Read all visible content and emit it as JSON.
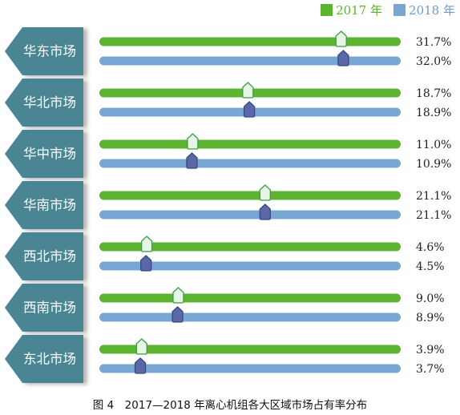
{
  "legend": {
    "items": [
      {
        "label": "2017 年",
        "color": "#5cb531",
        "text_color": "#5cb531"
      },
      {
        "label": "2018 年",
        "color": "#78a7d3",
        "text_color": "#6d9ccc"
      }
    ]
  },
  "caption": "图 4　2017—2018 年离心机组各大区域市场占有率分布",
  "colors": {
    "label_tab": "#4a8593",
    "marker_2017_fill": "#e7f5e4",
    "marker_2017_stroke": "#3d9a48",
    "marker_2018_fill": "#5a68a8",
    "marker_2018_stroke": "#3a4783"
  },
  "chart_data": {
    "type": "bar",
    "categories": [
      "华东市场",
      "华北市场",
      "华中市场",
      "华南市场",
      "西北市场",
      "西南市场",
      "东北市场"
    ],
    "series": [
      {
        "name": "2017 年",
        "values": [
          31.7,
          18.7,
          11.0,
          21.1,
          4.6,
          9.0,
          3.9
        ],
        "labels": [
          "31.7%",
          "18.7%",
          "11.0%",
          "21.1%",
          "4.6%",
          "9.0%",
          "3.9%"
        ]
      },
      {
        "name": "2018 年",
        "values": [
          32.0,
          18.9,
          10.9,
          21.1,
          4.5,
          8.9,
          3.7
        ],
        "labels": [
          "32.0%",
          "18.9%",
          "10.9%",
          "21.1%",
          "4.5%",
          "8.9%",
          "3.7%"
        ]
      }
    ],
    "xlim": [
      -2,
      40
    ],
    "title": "",
    "xlabel": "",
    "ylabel": "",
    "legend_position": "top-right"
  }
}
